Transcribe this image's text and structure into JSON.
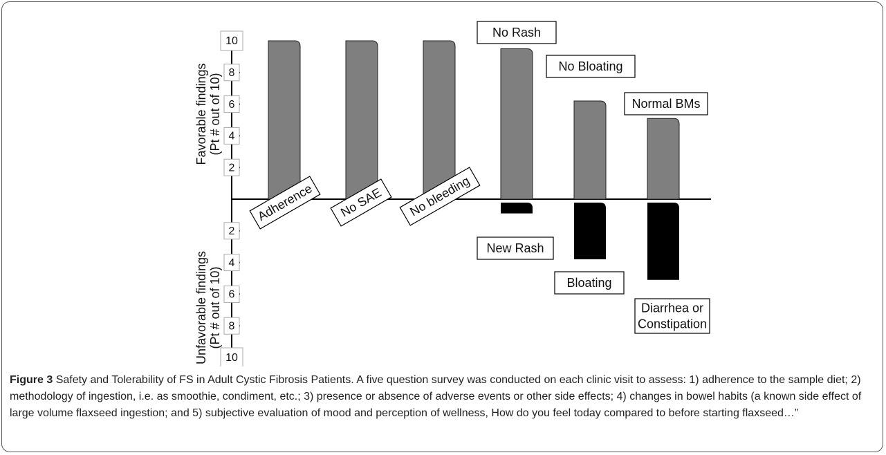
{
  "chart_data": {
    "type": "diverging_bar",
    "y_label_top": [
      "Favorable findings",
      "(Pt # out of 10)"
    ],
    "y_label_bottom": [
      "Unfavorable findings",
      "(Pt # out of 10)"
    ],
    "ylim": [
      -10,
      10
    ],
    "yticks": [
      {
        "value": -10,
        "label": "10"
      },
      {
        "value": -8,
        "label": "8"
      },
      {
        "value": -6,
        "label": "6"
      },
      {
        "value": -4,
        "label": "4"
      },
      {
        "value": -2,
        "label": "2"
      },
      2,
      4,
      6,
      8,
      10
    ],
    "favorable": {
      "labels": [
        "Adherence",
        "No SAE",
        "No bleeding",
        "No Rash",
        "No Bloating",
        "Normal BMs"
      ],
      "values": [
        10,
        10,
        10,
        9.5,
        6.2,
        5.1
      ],
      "color": "#7f7f7f"
    },
    "unfavorable": {
      "labels": [
        null,
        null,
        null,
        [
          "New Rash"
        ],
        [
          "Bloating"
        ],
        [
          "Diarrhea or",
          "Constipation"
        ]
      ],
      "values": [
        null,
        null,
        null,
        -0.9,
        -3.8,
        -5.1
      ],
      "color": "#000000"
    }
  },
  "caption": {
    "label": "Figure 3",
    "text": "Safety and Tolerability of FS in Adult Cystic Fibrosis Patients. A five question survey was conducted on each clinic visit to assess: 1) adherence to the sample diet; 2) methodology of ingestion, i.e. as smoothie, condiment, etc.; 3) presence or absence of adverse events or other side effects; 4) changes in bowel habits (a known side effect of large volume flaxseed ingestion; and 5) subjective evaluation of mood and perception of wellness, How do you feel today compared to before starting flaxseed…”"
  }
}
